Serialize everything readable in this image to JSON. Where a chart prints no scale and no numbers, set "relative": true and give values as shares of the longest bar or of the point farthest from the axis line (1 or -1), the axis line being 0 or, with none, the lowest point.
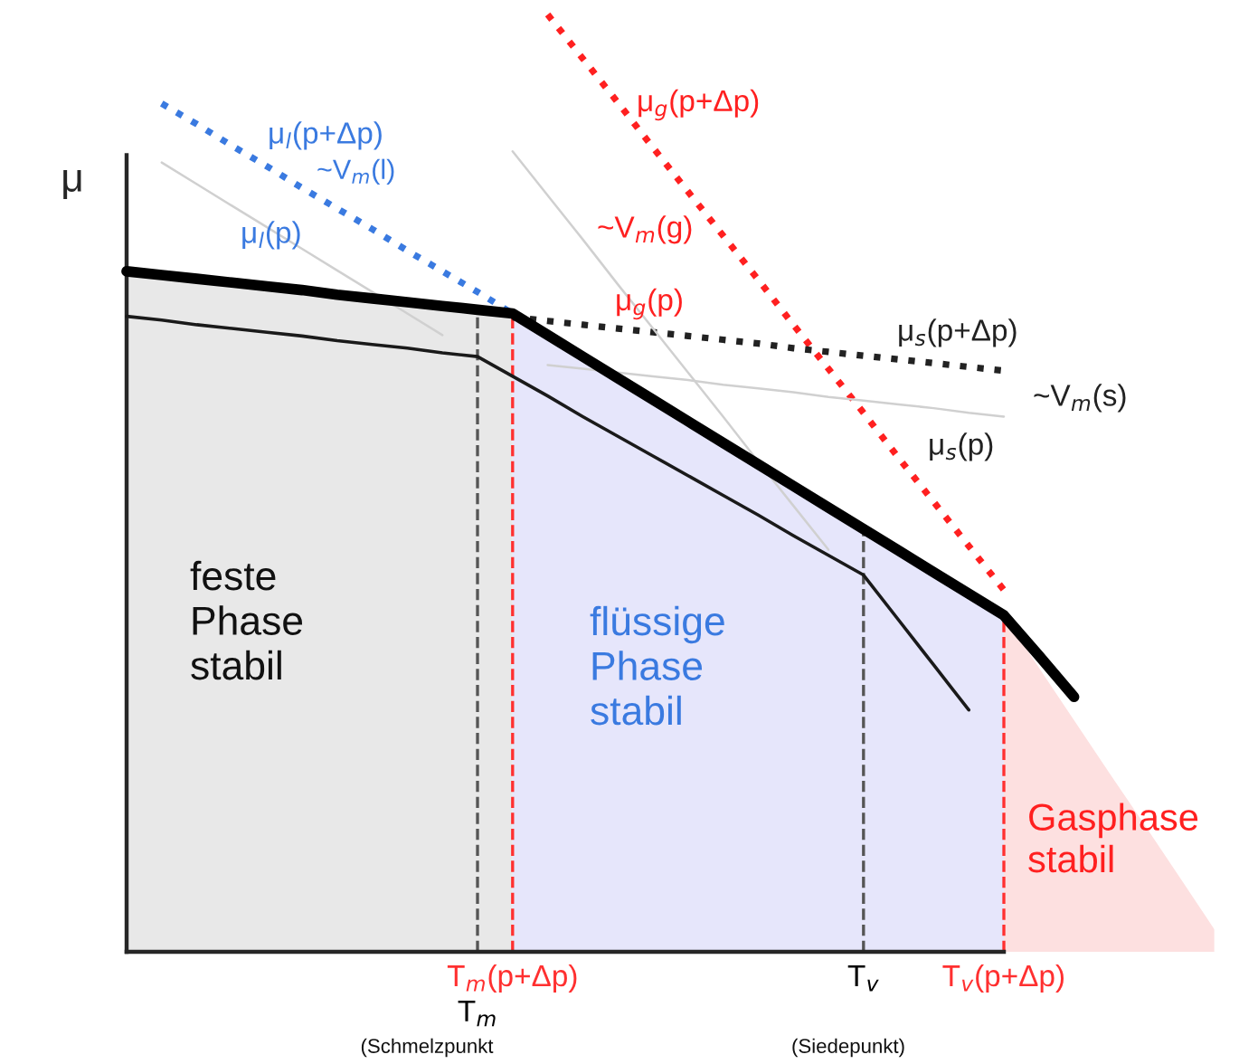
{
  "chart_data": {
    "type": "line",
    "relative": true,
    "ylabel": "μ",
    "legend": false,
    "grid": false,
    "categories": [
      null,
      null,
      null,
      null,
      null,
      null,
      null,
      null,
      null,
      null,
      "T$_{m}$",
      "T$_{m}$(p+Δp)",
      null,
      null,
      null,
      null,
      null,
      null,
      null,
      null,
      null,
      "T$_{v}$",
      null,
      null,
      null,
      "T$_{v}$(p+Δp)",
      null,
      null,
      null,
      null,
      null,
      null
    ],
    "series": [
      {
        "color": "#000000",
        "line_style": "solid",
        "values": [
          0.726,
          0.722,
          0.718,
          0.714,
          0.71,
          0.706,
          0.701,
          0.697,
          0.693,
          0.689,
          0.685,
          0.681,
          0.658,
          0.635,
          0.612,
          0.589,
          0.566,
          0.543,
          0.52,
          0.497,
          0.474,
          0.451,
          0.428,
          0.405,
          0.382,
          0.359,
          0.316,
          0.272,
          null,
          null,
          null,
          null
        ]
      },
      {
        "color": "#1a1a1a",
        "line_style": "solid",
        "values": [
          0.678,
          0.674,
          0.669,
          0.665,
          0.661,
          0.657,
          0.652,
          0.648,
          0.644,
          0.639,
          0.635,
          0.614,
          0.593,
          0.571,
          0.55,
          0.529,
          0.508,
          0.487,
          0.466,
          0.444,
          0.423,
          0.402,
          0.354,
          0.306,
          0.258,
          null,
          null,
          null,
          null,
          null,
          null,
          null
        ]
      },
      {
        "color": "#3a7ae0",
        "line_style": "dotted",
        "values": [
          null,
          0.905,
          0.883,
          0.86,
          0.838,
          0.815,
          0.793,
          0.771,
          0.748,
          0.726,
          0.704,
          0.681,
          null,
          null,
          null,
          null,
          null,
          null,
          null,
          null,
          null,
          null,
          null,
          null,
          null,
          null,
          null,
          null,
          null,
          null,
          null,
          null
        ]
      },
      {
        "color": "#ff2020",
        "line_style": "dotted",
        "values": [
          null,
          null,
          null,
          null,
          null,
          null,
          null,
          null,
          null,
          null,
          null,
          null,
          1.0,
          0.953,
          0.906,
          0.858,
          0.811,
          0.764,
          0.717,
          0.669,
          0.622,
          0.575,
          0.527,
          0.48,
          0.433,
          0.386,
          null,
          null,
          null,
          null,
          null,
          null
        ]
      },
      {
        "color": "#222222",
        "line_style": "dotted",
        "values": [
          null,
          null,
          null,
          null,
          null,
          null,
          null,
          null,
          null,
          null,
          null,
          0.677,
          0.673,
          0.669,
          0.665,
          0.661,
          0.657,
          0.653,
          0.649,
          0.644,
          0.64,
          0.636,
          0.632,
          0.628,
          0.624,
          0.62,
          null,
          null,
          null,
          null,
          null,
          null
        ]
      },
      {
        "color": "#d0d0d0",
        "line_style": "solid",
        "values": [
          null,
          0.842,
          0.819,
          0.796,
          0.773,
          0.75,
          0.727,
          0.704,
          0.681,
          0.658,
          null,
          null,
          null,
          null,
          null,
          null,
          null,
          null,
          null,
          null,
          null,
          null,
          null,
          null,
          null,
          null,
          null,
          null,
          null,
          null,
          null,
          null
        ]
      },
      {
        "color": "#d0d0d0",
        "line_style": "solid",
        "values": [
          null,
          null,
          null,
          null,
          null,
          null,
          null,
          null,
          null,
          null,
          null,
          0.854,
          0.807,
          0.76,
          0.712,
          0.665,
          0.618,
          0.571,
          0.523,
          0.476,
          0.429,
          null,
          null,
          null,
          null,
          null,
          null,
          null,
          null,
          null,
          null,
          null
        ]
      },
      {
        "color": "#d0d0d0",
        "line_style": "solid",
        "values": [
          null,
          null,
          null,
          null,
          null,
          null,
          null,
          null,
          null,
          null,
          null,
          null,
          0.626,
          0.622,
          0.618,
          0.614,
          0.61,
          0.605,
          0.601,
          0.597,
          0.592,
          0.588,
          0.584,
          0.58,
          0.575,
          0.571,
          null,
          null,
          null,
          null,
          null,
          null
        ]
      },
      {
        "type": "area",
        "color": "#e8e8e8",
        "values": [
          0.726,
          0.722,
          0.718,
          0.714,
          0.71,
          0.706,
          0.701,
          0.697,
          0.693,
          0.689,
          0.685,
          0.681,
          null,
          null,
          null,
          null,
          null,
          null,
          null,
          null,
          null,
          null,
          null,
          null,
          null,
          null,
          null,
          null,
          null,
          null,
          null,
          null
        ]
      },
      {
        "type": "area",
        "color": "#e6e6fb",
        "values": [
          null,
          null,
          null,
          null,
          null,
          null,
          null,
          null,
          null,
          null,
          null,
          0.681,
          0.658,
          0.635,
          0.612,
          0.589,
          0.566,
          0.543,
          0.52,
          0.497,
          0.474,
          0.451,
          0.428,
          0.405,
          0.382,
          0.359,
          null,
          null,
          null,
          null,
          null,
          null
        ]
      },
      {
        "type": "area",
        "color": "#fde0e0",
        "values": [
          null,
          null,
          null,
          null,
          null,
          null,
          null,
          null,
          null,
          null,
          null,
          null,
          null,
          null,
          null,
          null,
          null,
          null,
          null,
          null,
          null,
          null,
          null,
          null,
          null,
          0.359,
          0.303,
          0.247,
          0.191,
          0.136,
          0.08,
          0.024
        ]
      }
    ],
    "ref_lines": [
      {
        "axis": "x",
        "value": "T$_{m}$",
        "color": "#555555",
        "line_style": "dashed"
      },
      {
        "axis": "x",
        "value": "T$_{m}$(p+Δp)",
        "color": "#ff3030",
        "line_style": "dashed"
      },
      {
        "axis": "x",
        "value": "T$_{v}$",
        "color": "#555555",
        "line_style": "dashed"
      },
      {
        "axis": "x",
        "value": "T$_{v}$(p+Δp)",
        "color": "#ff3030",
        "line_style": "dashed"
      }
    ],
    "annotations": [
      "μ$_{l}$(p+Δp)",
      "~V$_{m}$(l)",
      "μ$_{l}$(p)",
      "μ$_{g}$(p+Δp)",
      "~V$_{m}$(g)",
      "μ$_{g}$(p)",
      "μ$_{s}$(p+Δp)",
      "~V$_{m}$(s)",
      "μ$_{s}$(p)",
      "feste\nPhase\nstabil",
      "flüssige\nPhase\nstabil",
      "Gasphase\nstabil",
      "(Schmelzpunkt",
      "(Siedepunkt)"
    ]
  }
}
